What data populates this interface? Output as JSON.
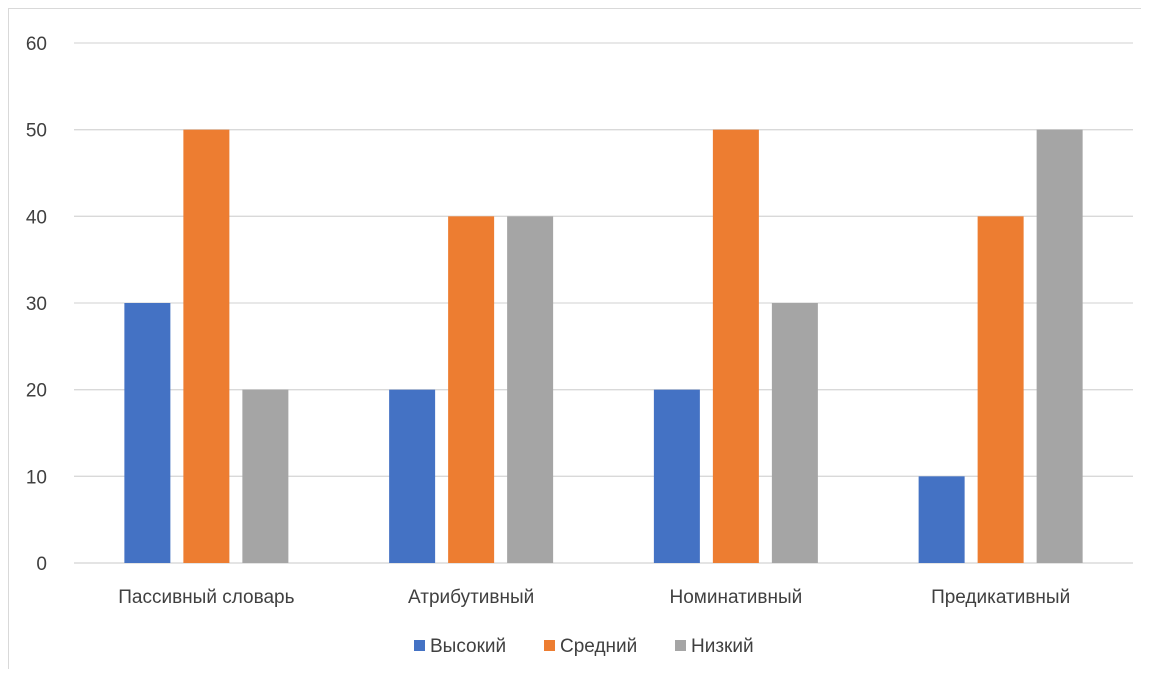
{
  "chart_data": {
    "type": "bar",
    "title": "",
    "xlabel": "",
    "ylabel": "",
    "categories": [
      "Пассивный словарь",
      "Атрибутивный",
      "Номинативный",
      "Предикативный"
    ],
    "series": [
      {
        "name": "Высокий",
        "color": "#4472c4",
        "values": [
          30,
          20,
          20,
          10
        ]
      },
      {
        "name": "Средний",
        "color": "#ed7d31",
        "values": [
          50,
          40,
          50,
          40
        ]
      },
      {
        "name": "Низкий",
        "color": "#a5a5a5",
        "values": [
          20,
          40,
          30,
          50
        ]
      }
    ],
    "ylim": [
      0,
      60
    ],
    "yticks": [
      "0",
      "10",
      "20",
      "30",
      "40",
      "50",
      "60"
    ],
    "grid": true,
    "legend_position": "bottom"
  }
}
